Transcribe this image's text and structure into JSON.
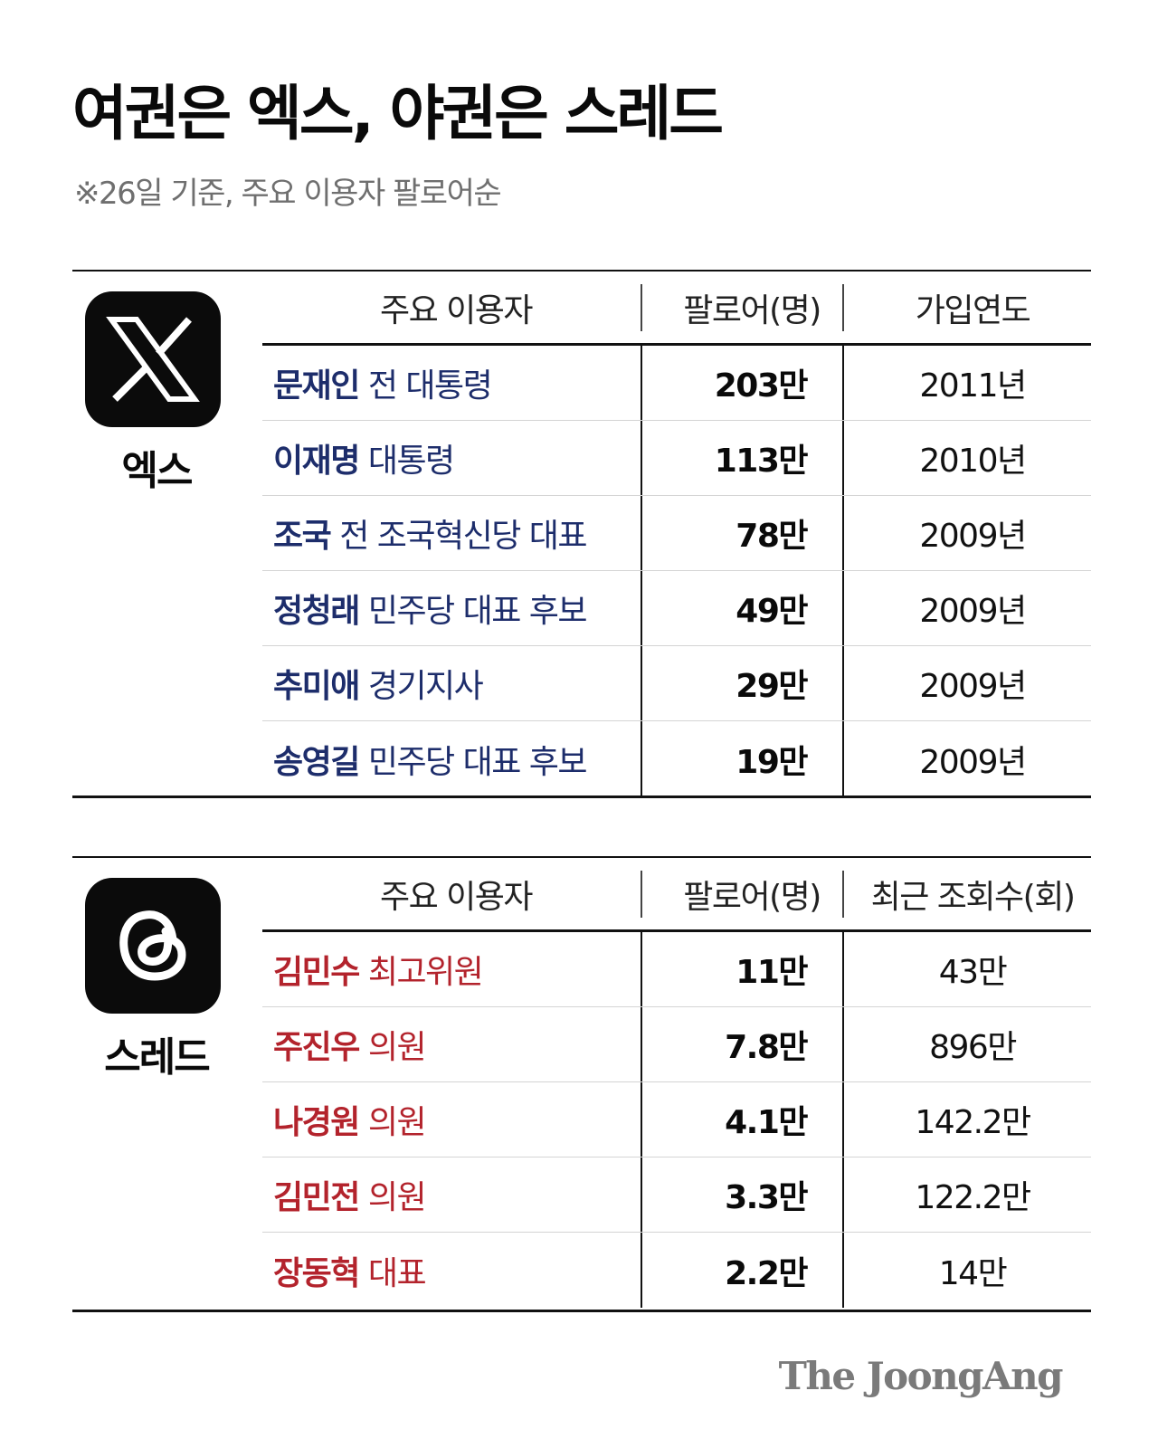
{
  "title": "여권은 엑스, 야권은 스레드",
  "subtitle": "※26일 기준, 주요 이용자 팔로어순",
  "sections": {
    "x": {
      "platform": "엑스",
      "logo_icon": "x-logo-icon",
      "name_color": "#1d2d6b",
      "headers": [
        "주요 이용자",
        "팔로어(명)",
        "가입연도"
      ],
      "rows": [
        {
          "name": "문재인",
          "role": " 전 대통령",
          "followers": "203만",
          "value": "2011년"
        },
        {
          "name": "이재명",
          "role": " 대통령",
          "followers": "113만",
          "value": "2010년"
        },
        {
          "name": "조국",
          "role": " 전 조국혁신당 대표",
          "followers": "78만",
          "value": "2009년"
        },
        {
          "name": "정청래",
          "role": " 민주당 대표 후보",
          "followers": "49만",
          "value": "2009년"
        },
        {
          "name": "추미애",
          "role": " 경기지사",
          "followers": "29만",
          "value": "2009년"
        },
        {
          "name": "송영길",
          "role": " 민주당 대표 후보",
          "followers": "19만",
          "value": "2009년"
        }
      ]
    },
    "threads": {
      "platform": "스레드",
      "logo_icon": "threads-logo-icon",
      "name_color": "#b3232c",
      "headers": [
        "주요 이용자",
        "팔로어(명)",
        "최근 조회수(회)"
      ],
      "rows": [
        {
          "name": "김민수",
          "role": " 최고위원",
          "followers": "11만",
          "value": "43만"
        },
        {
          "name": "주진우",
          "role": " 의원",
          "followers": "7.8만",
          "value": "896만"
        },
        {
          "name": "나경원",
          "role": " 의원",
          "followers": "4.1만",
          "value": "142.2만"
        },
        {
          "name": "김민전",
          "role": " 의원",
          "followers": "3.3만",
          "value": "122.2만"
        },
        {
          "name": "장동혁",
          "role": " 대표",
          "followers": "2.2만",
          "value": "14만"
        }
      ]
    }
  },
  "brand": "The JoongAng"
}
